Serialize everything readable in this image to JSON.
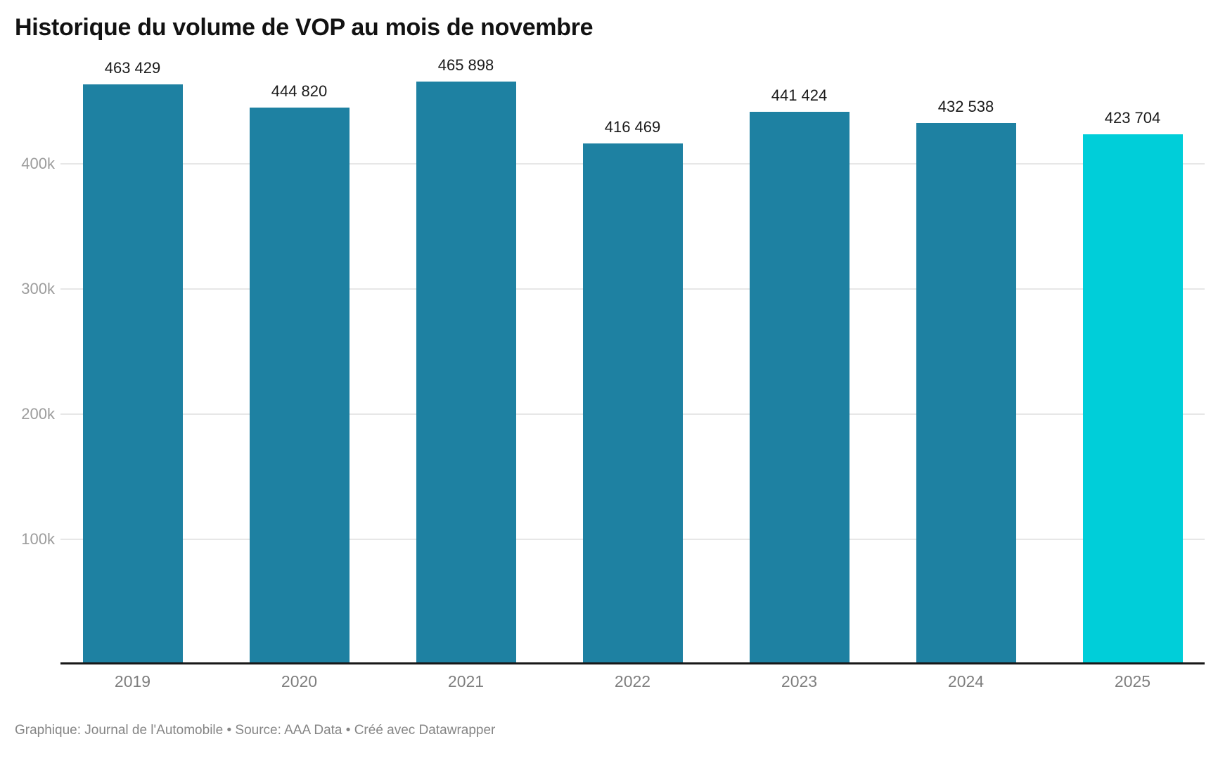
{
  "title": "Historique du volume de VOP au mois de novembre",
  "footer": "Graphique: Journal de l'Automobile • Source: AAA Data • Créé avec Datawrapper",
  "colors": {
    "bar": "#1e81a2",
    "bar_highlight": "#00ced9",
    "grid": "#e7e7e7",
    "axis_line": "#181818",
    "y_tick_label": "#9c9c9c",
    "x_tick_label": "#7e7e7e",
    "value_label": "#1a1a1a",
    "title_text": "#121212",
    "footer_text": "#858585"
  },
  "chart_data": {
    "type": "bar",
    "title": "Historique du volume de VOP au mois de novembre",
    "xlabel": "",
    "ylabel": "",
    "categories": [
      "2019",
      "2020",
      "2021",
      "2022",
      "2023",
      "2024",
      "2025"
    ],
    "values": [
      463429,
      444820,
      465898,
      416469,
      441424,
      432538,
      423704
    ],
    "value_labels": [
      "463 429",
      "444 820",
      "465 898",
      "416 469",
      "441 424",
      "432 538",
      "423 704"
    ],
    "highlight_index": 6,
    "ylim": [
      0,
      500000
    ],
    "yticks": [
      {
        "value": 100000,
        "label": "100k"
      },
      {
        "value": 200000,
        "label": "200k"
      },
      {
        "value": 300000,
        "label": "300k"
      },
      {
        "value": 400000,
        "label": "400k"
      }
    ],
    "grid": true,
    "legend": false
  }
}
